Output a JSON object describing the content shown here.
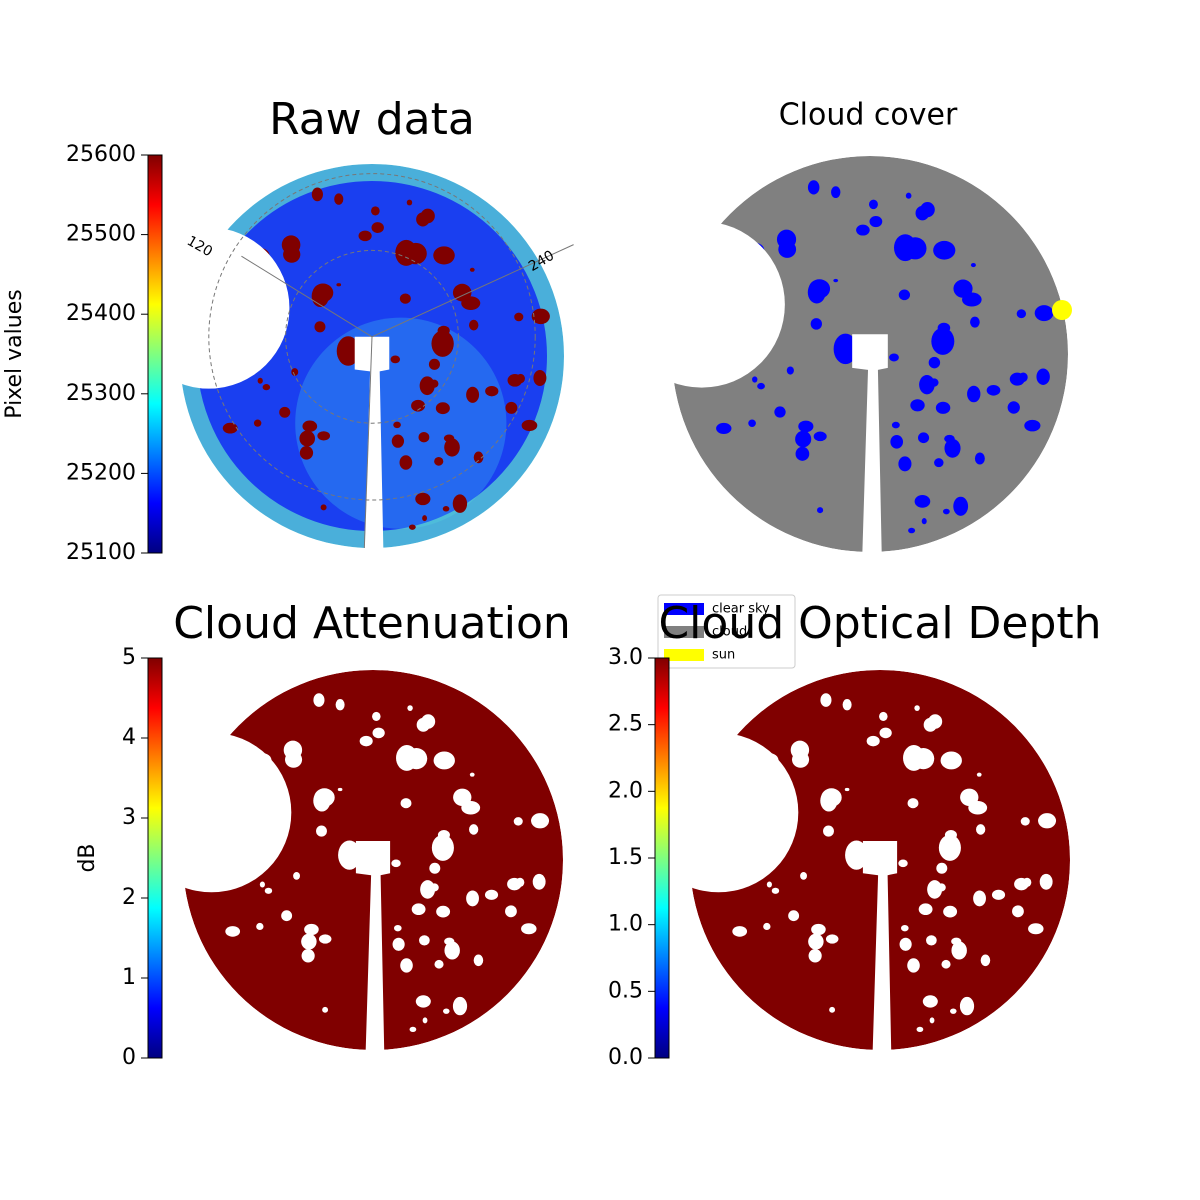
{
  "chart_data": [
    {
      "type": "image",
      "title": "Raw data",
      "colormap": "jet",
      "color": "#1a3ff0",
      "ylabel": "Pixel values",
      "ylim": [
        25100,
        25600
      ],
      "yticks": [
        25100,
        25200,
        25300,
        25400,
        25500,
        25600
      ],
      "annotations": [
        "120",
        "240"
      ]
    },
    {
      "type": "image",
      "title": "Cloud cover",
      "color": "#808080",
      "series": [
        {
          "name": "clear sky",
          "color": "#0000ff"
        },
        {
          "name": "cloud",
          "color": "#808080"
        },
        {
          "name": "sun",
          "color": "#ffff00"
        }
      ]
    },
    {
      "type": "image",
      "title": "Cloud Attenuation",
      "colormap": "jet",
      "color": "#800000",
      "ylabel": "dB",
      "ylim": [
        0,
        5
      ],
      "yticks": [
        0,
        1,
        2,
        3,
        4,
        5
      ]
    },
    {
      "type": "image",
      "title": "Cloud Optical Depth",
      "colormap": "jet",
      "color": "#800000",
      "ylim": [
        0,
        3
      ],
      "yticks": [
        {
          "value": 0,
          "label": "0.0"
        },
        0.5,
        {
          "value": 1,
          "label": "1.0"
        },
        1.5,
        {
          "value": 2,
          "label": "2.0"
        },
        2.5,
        {
          "value": 3,
          "label": "3.0"
        }
      ]
    }
  ]
}
